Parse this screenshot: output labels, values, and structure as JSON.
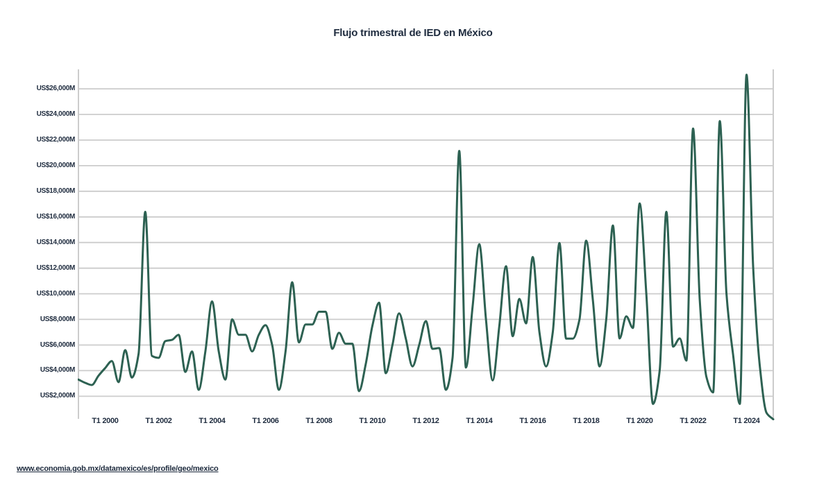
{
  "page": {
    "title": "Flujo trimestral de IED en México",
    "source_link": "www.economia.gob.mx/datamexico/es/profile/geo/mexico",
    "background_color": "#ffffff"
  },
  "chart_data": {
    "type": "line",
    "title": "Flujo trimestral de IED en México",
    "xlabel": "",
    "ylabel": "",
    "unit": "US$M (millones de dólares)",
    "legend_position": "none",
    "grid": "horizontal",
    "line_color": "#2d6152",
    "grid_color": "#cccccc",
    "label_color": "#1e2b3e",
    "ylim": [
      0,
      27500
    ],
    "y_tick_values": [
      26000,
      24000,
      22000,
      20000,
      18000,
      16000,
      14000,
      12000,
      10000,
      8000,
      6000,
      4000,
      2000
    ],
    "y_tick_labels": [
      "US$26,000M",
      "US$24,000M",
      "US$22,000M",
      "US$20,000M",
      "US$18,000M",
      "US$16,000M",
      "US$14,000M",
      "US$12,000M",
      "US$10,000M",
      "US$8,000M",
      "US$6,000M",
      "US$4,000M",
      "US$2,000M"
    ],
    "x_tick_labels": [
      "T1 2000",
      "T1 2002",
      "T1 2004",
      "T1 2006",
      "T1 2008",
      "T1 2010",
      "T1 2012",
      "T1 2014",
      "T1 2016",
      "T1 2018",
      "T1 2020",
      "T1 2022",
      "T1 2024"
    ],
    "x_tick_years": [
      2000,
      2002,
      2004,
      2006,
      2008,
      2010,
      2012,
      2014,
      2016,
      2018,
      2020,
      2022,
      2024
    ],
    "series": [
      {
        "name": "Flujo trimestral de IED",
        "frequency": "trimestral",
        "start": "T1 1999",
        "end": "T1 2025",
        "quarters": [
          "T1 1999",
          "T2 1999",
          "T3 1999",
          "T4 1999",
          "T1 2000",
          "T2 2000",
          "T3 2000",
          "T4 2000",
          "T1 2001",
          "T2 2001",
          "T3 2001",
          "T4 2001",
          "T1 2002",
          "T2 2002",
          "T3 2002",
          "T4 2002",
          "T1 2003",
          "T2 2003",
          "T3 2003",
          "T4 2003",
          "T1 2004",
          "T2 2004",
          "T3 2004",
          "T4 2004",
          "T1 2005",
          "T2 2005",
          "T3 2005",
          "T4 2005",
          "T1 2006",
          "T2 2006",
          "T3 2006",
          "T4 2006",
          "T1 2007",
          "T2 2007",
          "T3 2007",
          "T4 2007",
          "T1 2008",
          "T2 2008",
          "T3 2008",
          "T4 2008",
          "T1 2009",
          "T2 2009",
          "T3 2009",
          "T4 2009",
          "T1 2010",
          "T2 2010",
          "T3 2010",
          "T4 2010",
          "T1 2011",
          "T2 2011",
          "T3 2011",
          "T4 2011",
          "T1 2012",
          "T2 2012",
          "T3 2012",
          "T4 2012",
          "T1 2013",
          "T2 2013",
          "T3 2013",
          "T4 2013",
          "T1 2014",
          "T2 2014",
          "T3 2014",
          "T4 2014",
          "T1 2015",
          "T2 2015",
          "T3 2015",
          "T4 2015",
          "T1 2016",
          "T2 2016",
          "T3 2016",
          "T4 2016",
          "T1 2017",
          "T2 2017",
          "T3 2017",
          "T4 2017",
          "T1 2018",
          "T2 2018",
          "T3 2018",
          "T4 2018",
          "T1 2019",
          "T2 2019",
          "T3 2019",
          "T4 2019",
          "T1 2020",
          "T2 2020",
          "T3 2020",
          "T4 2020",
          "T1 2021",
          "T2 2021",
          "T3 2021",
          "T4 2021",
          "T1 2022",
          "T2 2022",
          "T3 2022",
          "T4 2022",
          "T1 2023",
          "T2 2023",
          "T3 2023",
          "T4 2023",
          "T1 2024",
          "T2 2024",
          "T3 2024",
          "T4 2024",
          "T1 2025"
        ],
        "values": [
          3300,
          3050,
          2880,
          3600,
          4200,
          4750,
          3100,
          5600,
          3460,
          5300,
          16400,
          5150,
          5000,
          6300,
          6400,
          6800,
          3900,
          5500,
          2500,
          5500,
          9400,
          5500,
          3300,
          8000,
          6800,
          6800,
          5500,
          6800,
          7550,
          6000,
          2500,
          5500,
          10900,
          6200,
          7600,
          7600,
          8600,
          8600,
          5700,
          6950,
          6100,
          6100,
          2400,
          4500,
          7500,
          9300,
          3800,
          6000,
          8470,
          6500,
          4330,
          6000,
          7870,
          5700,
          5760,
          2500,
          5000,
          21150,
          4240,
          9000,
          13870,
          8000,
          3240,
          7500,
          12150,
          6690,
          9600,
          7690,
          12870,
          7000,
          4330,
          7000,
          13960,
          6500,
          6500,
          8000,
          14150,
          9500,
          4330,
          8000,
          15330,
          6510,
          8240,
          7330,
          17050,
          10000,
          1400,
          4000,
          16400,
          5870,
          6510,
          4780,
          22900,
          9500,
          3500,
          2300,
          23480,
          10000,
          5200,
          1400,
          27100,
          12000,
          4300,
          700,
          200
        ]
      }
    ]
  }
}
